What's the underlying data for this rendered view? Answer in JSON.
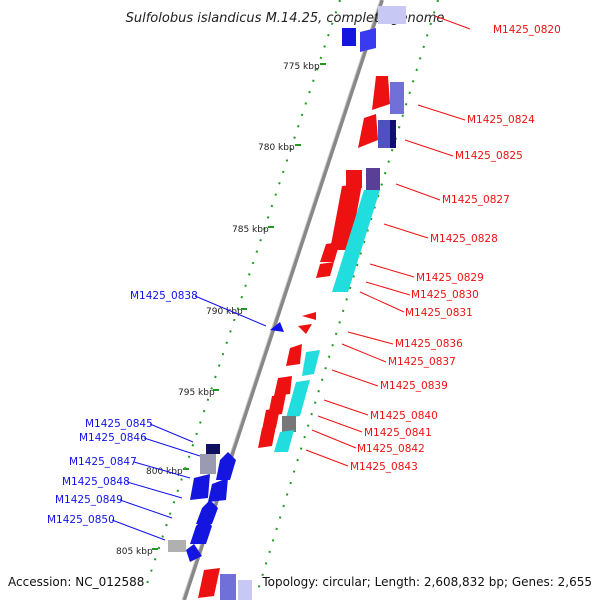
{
  "title": "Sulfolobus islandicus M.14.25, complete genome",
  "footer": {
    "accession": "Accession: NC_012588",
    "topology": "Topology: circular; Length: 2,608,832 bp; Genes: 2,655"
  },
  "ruler": [
    "775 kbp",
    "780 kbp",
    "785 kbp",
    "790 kbp",
    "795 kbp",
    "800 kbp",
    "805 kbp"
  ],
  "colors": {
    "forward": "#ee1111",
    "reverse": "#1111ee",
    "rna": "#22dddd",
    "tick": "#229922",
    "ring": "#777777"
  },
  "labels_right": [
    "M1425_0820",
    "M1425_0824",
    "M1425_0825",
    "M1425_0827",
    "M1425_0828",
    "M1425_0829",
    "M1425_0830",
    "M1425_0831",
    "M1425_0836",
    "M1425_0837",
    "M1425_0839",
    "M1425_0840",
    "M1425_0841",
    "M1425_0842",
    "M1425_0843"
  ],
  "labels_left": [
    "M1425_0838",
    "M1425_0845",
    "M1425_0846",
    "M1425_0847",
    "M1425_0848",
    "M1425_0849",
    "M1425_0850"
  ]
}
